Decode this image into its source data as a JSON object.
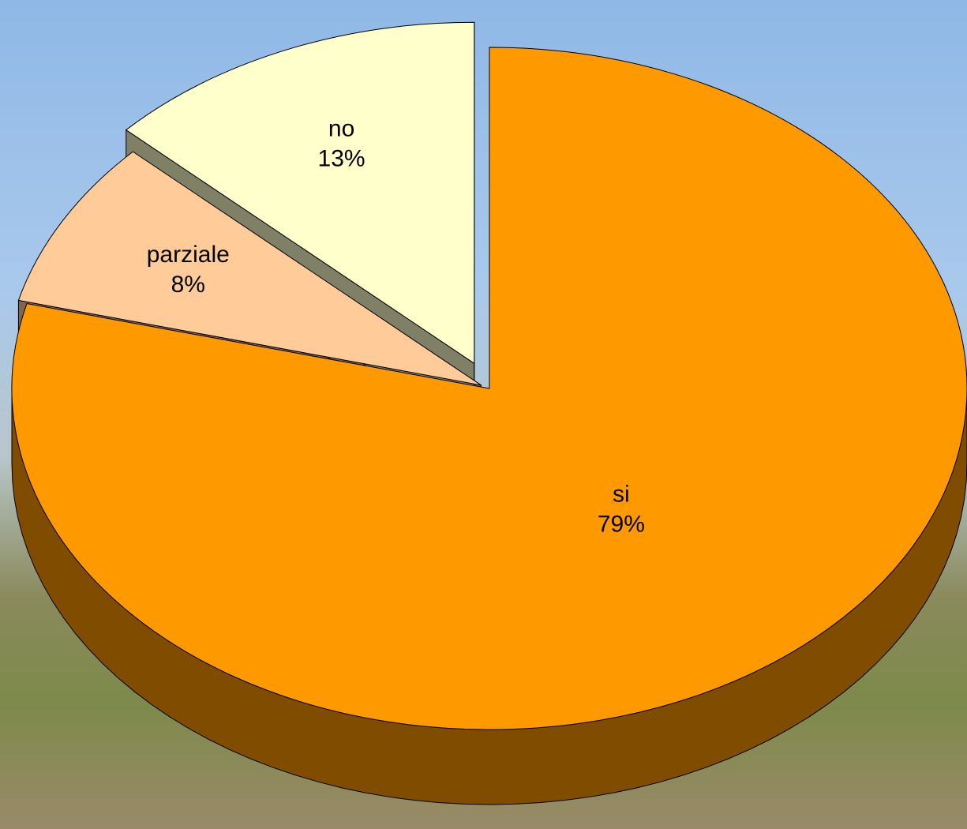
{
  "chart_data": {
    "type": "pie",
    "categories": [
      "si",
      "parziale",
      "no"
    ],
    "values": [
      79,
      8,
      13
    ],
    "value_labels": [
      "79%",
      "8%",
      "13%"
    ],
    "colors": [
      "#FF9900",
      "#FFCC99",
      "#FFFFCC"
    ]
  }
}
